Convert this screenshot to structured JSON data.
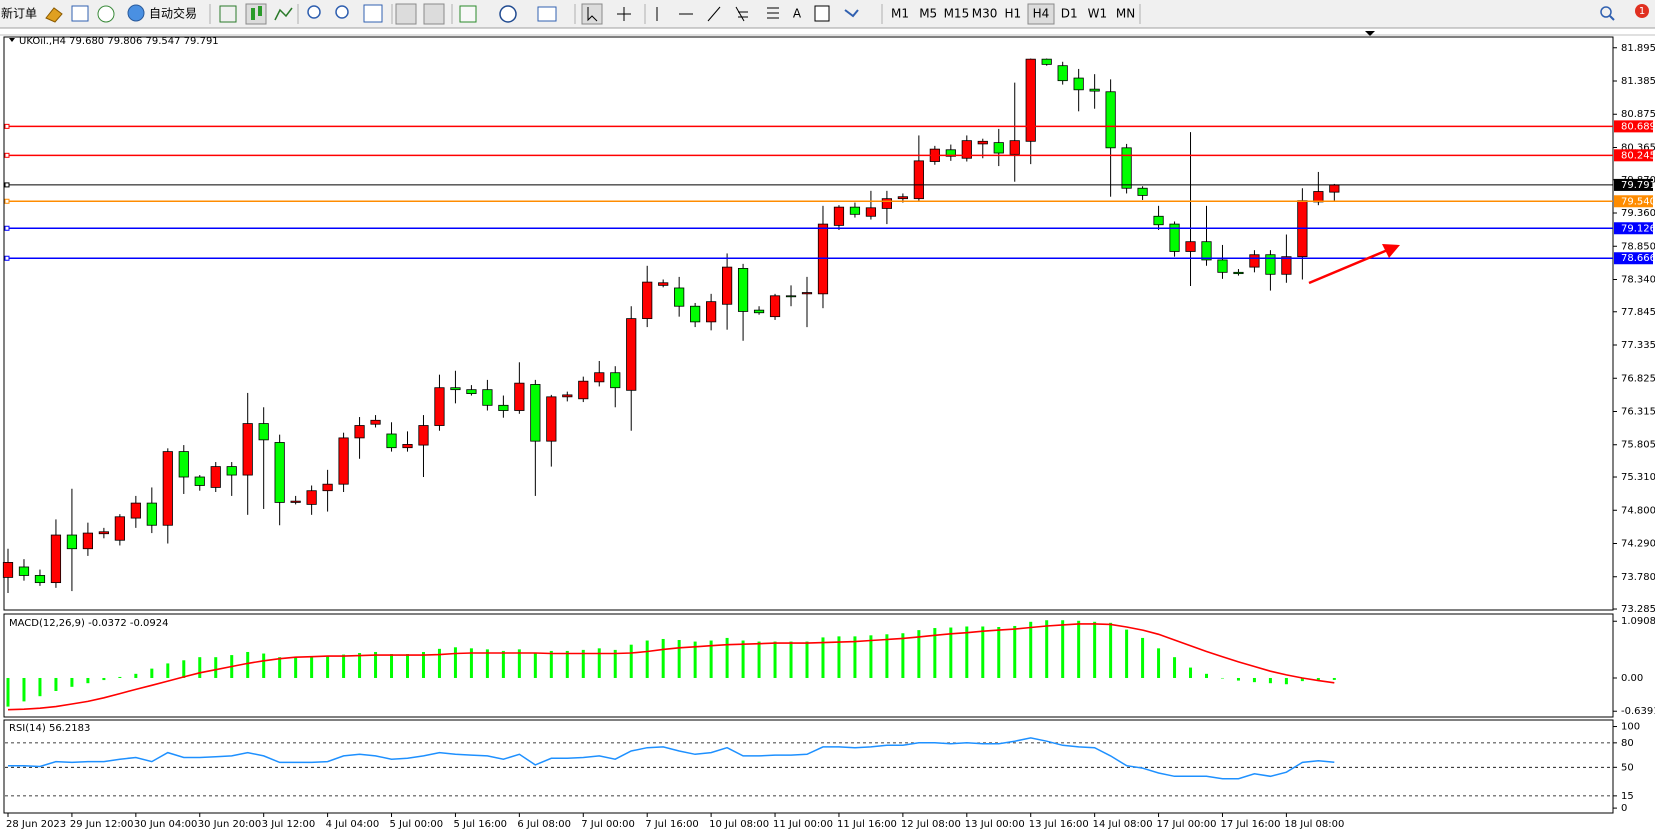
{
  "toolbar": {
    "new_order": "新订单",
    "auto_trading": "自动交易",
    "text_tool": "A",
    "timeframes": [
      "M1",
      "M5",
      "M15",
      "M30",
      "H1",
      "H4",
      "D1",
      "W1",
      "MN"
    ],
    "active_timeframe": "H4",
    "notification_count": 1
  },
  "chart_data": [
    {
      "type": "candlestick",
      "title": "UKOil.,H4 79.680 79.806 79.547 79.791",
      "up_color": "#ff0000",
      "down_color": "#00ff00",
      "categories": [
        "28 Jun 2023",
        null,
        null,
        null,
        "29 Jun 12:00",
        null,
        null,
        null,
        "30 Jun 04:00",
        null,
        null,
        null,
        "30 Jun 20:00",
        null,
        null,
        null,
        "3 Jul 12:00",
        null,
        null,
        null,
        "4 Jul 04:00",
        null,
        null,
        null,
        "5 Jul 00:00",
        null,
        null,
        null,
        "5 Jul 16:00",
        null,
        null,
        null,
        "6 Jul 08:00",
        null,
        null,
        null,
        "7 Jul 00:00",
        null,
        null,
        null,
        "7 Jul 16:00",
        null,
        null,
        null,
        "10 Jul 08:00",
        null,
        null,
        null,
        "11 Jul 00:00",
        null,
        null,
        null,
        "11 Jul 16:00",
        null,
        null,
        null,
        "12 Jul 08:00",
        null,
        null,
        null,
        "13 Jul 00:00",
        null,
        null,
        null,
        "13 Jul 16:00",
        null,
        null,
        null,
        "14 Jul 08:00",
        null,
        null,
        null,
        "17 Jul 00:00",
        null,
        null,
        null,
        "17 Jul 16:00",
        null,
        null,
        null,
        "18 Jul 08:00",
        null,
        null,
        null
      ],
      "ohlc": [
        [
          73.77,
          74.21,
          73.53,
          74.0
        ],
        [
          73.93,
          74.05,
          73.72,
          73.8
        ],
        [
          73.8,
          73.89,
          73.64,
          73.69
        ],
        [
          73.69,
          74.66,
          73.61,
          74.42
        ],
        [
          74.42,
          75.13,
          73.56,
          74.21
        ],
        [
          74.21,
          74.61,
          74.1,
          74.45
        ],
        [
          74.44,
          74.53,
          74.37,
          74.47
        ],
        [
          74.34,
          74.74,
          74.26,
          74.7
        ],
        [
          74.68,
          75.02,
          74.53,
          74.91
        ],
        [
          74.91,
          75.15,
          74.45,
          74.57
        ],
        [
          74.57,
          75.75,
          74.29,
          75.7
        ],
        [
          75.7,
          75.8,
          75.05,
          75.31
        ],
        [
          75.31,
          75.34,
          75.1,
          75.18
        ],
        [
          75.15,
          75.54,
          75.08,
          75.47
        ],
        [
          75.47,
          75.54,
          75.02,
          75.34
        ],
        [
          75.34,
          76.6,
          74.73,
          76.13
        ],
        [
          76.13,
          76.38,
          74.82,
          75.88
        ],
        [
          75.84,
          75.96,
          74.57,
          74.92
        ],
        [
          74.92,
          75.02,
          74.89,
          74.94
        ],
        [
          74.89,
          75.18,
          74.73,
          75.1
        ],
        [
          75.1,
          75.42,
          74.78,
          75.2
        ],
        [
          75.2,
          75.99,
          75.08,
          75.91
        ],
        [
          75.91,
          76.23,
          75.59,
          76.1
        ],
        [
          76.12,
          76.26,
          76.07,
          76.18
        ],
        [
          75.97,
          76.15,
          75.7,
          75.76
        ],
        [
          75.76,
          76.01,
          75.7,
          75.81
        ],
        [
          75.8,
          76.26,
          75.31,
          76.1
        ],
        [
          76.1,
          76.88,
          76.02,
          76.68
        ],
        [
          76.68,
          76.94,
          76.44,
          76.65
        ],
        [
          76.65,
          76.72,
          76.56,
          76.59
        ],
        [
          76.65,
          76.8,
          76.33,
          76.41
        ],
        [
          76.41,
          76.56,
          76.22,
          76.33
        ],
        [
          76.33,
          77.07,
          76.28,
          76.75
        ],
        [
          76.73,
          76.8,
          75.02,
          75.86
        ],
        [
          75.86,
          76.57,
          75.47,
          76.54
        ],
        [
          76.54,
          76.62,
          76.47,
          76.57
        ],
        [
          76.51,
          76.85,
          76.46,
          76.78
        ],
        [
          76.77,
          77.09,
          76.7,
          76.91
        ],
        [
          76.91,
          77.01,
          76.38,
          76.68
        ],
        [
          76.64,
          77.93,
          76.02,
          77.74
        ],
        [
          77.74,
          78.55,
          77.61,
          78.3
        ],
        [
          78.25,
          78.34,
          78.22,
          78.29
        ],
        [
          78.21,
          78.38,
          77.77,
          77.93
        ],
        [
          77.93,
          77.98,
          77.61,
          77.69
        ],
        [
          77.69,
          78.12,
          77.56,
          78.0
        ],
        [
          77.96,
          78.74,
          77.57,
          78.53
        ],
        [
          78.51,
          78.58,
          77.4,
          77.85
        ],
        [
          77.87,
          77.93,
          77.8,
          77.83
        ],
        [
          77.77,
          78.12,
          77.72,
          78.09
        ],
        [
          78.09,
          78.25,
          77.93,
          78.08
        ],
        [
          78.12,
          78.38,
          77.61,
          78.14
        ],
        [
          78.12,
          79.47,
          77.9,
          79.19
        ],
        [
          79.17,
          79.48,
          79.1,
          79.45
        ],
        [
          79.45,
          79.52,
          79.29,
          79.34
        ],
        [
          79.31,
          79.7,
          79.26,
          79.44
        ],
        [
          79.43,
          79.7,
          79.19,
          79.58
        ],
        [
          79.58,
          79.66,
          79.52,
          79.61
        ],
        [
          79.58,
          80.55,
          79.55,
          80.16
        ],
        [
          80.15,
          80.39,
          80.1,
          80.34
        ],
        [
          80.33,
          80.41,
          80.16,
          80.23
        ],
        [
          80.2,
          80.55,
          80.15,
          80.47
        ],
        [
          80.42,
          80.5,
          80.2,
          80.46
        ],
        [
          80.44,
          80.65,
          80.08,
          80.28
        ],
        [
          80.26,
          81.36,
          79.84,
          80.47
        ],
        [
          80.46,
          81.73,
          80.11,
          81.72
        ],
        [
          81.72,
          81.73,
          81.62,
          81.64
        ],
        [
          81.62,
          81.68,
          81.33,
          81.39
        ],
        [
          81.43,
          81.57,
          80.92,
          81.25
        ],
        [
          81.26,
          81.49,
          80.96,
          81.23
        ],
        [
          81.22,
          81.41,
          79.61,
          80.36
        ],
        [
          80.36,
          80.42,
          79.66,
          79.74
        ],
        [
          79.74,
          79.77,
          79.56,
          79.63
        ],
        [
          79.31,
          79.47,
          79.1,
          79.18
        ],
        [
          79.19,
          79.23,
          78.69,
          78.77
        ],
        [
          78.77,
          80.6,
          78.24,
          78.92
        ],
        [
          78.92,
          79.47,
          78.55,
          78.64
        ],
        [
          78.64,
          78.87,
          78.35,
          78.45
        ],
        [
          78.45,
          78.5,
          78.4,
          78.43
        ],
        [
          78.53,
          78.79,
          78.45,
          78.72
        ],
        [
          78.72,
          78.79,
          78.17,
          78.42
        ],
        [
          78.42,
          79.03,
          78.29,
          78.69
        ],
        [
          78.69,
          79.74,
          78.34,
          79.55
        ],
        [
          79.53,
          79.99,
          79.48,
          79.69
        ],
        [
          79.68,
          79.806,
          79.547,
          79.791
        ]
      ],
      "ylim": [
        73.27,
        82.06
      ],
      "yticks": [
        81.895,
        81.385,
        80.875,
        80.365,
        {
          "value": 79.87,
          "label": "79.870"
        },
        {
          "value": 79.36,
          "label": "79.360"
        },
        {
          "value": 78.85,
          "label": "78.850"
        },
        {
          "value": 78.34,
          "label": "78.340"
        },
        77.845,
        77.335,
        76.825,
        76.315,
        75.805,
        {
          "value": 75.31,
          "label": "75.310"
        },
        {
          "value": 74.8,
          "label": "74.800"
        },
        {
          "value": 74.29,
          "label": "74.290"
        },
        {
          "value": 73.78,
          "label": "73.780"
        },
        73.285
      ],
      "levels": [
        {
          "value": 80.689,
          "color": "#ff0000"
        },
        {
          "value": 80.245,
          "color": "#ff0000"
        },
        {
          "value": 79.791,
          "color": "#000000"
        },
        {
          "value": 79.54,
          "label": "79.540",
          "color": "#ff8c00"
        },
        {
          "value": 79.126,
          "color": "#0000ff"
        },
        {
          "value": 78.666,
          "color": "#0000ff"
        }
      ]
    },
    {
      "type": "macd",
      "title": "MACD(12,26,9) -0.0372 -0.0924",
      "series": [
        {
          "color": "#00ff00",
          "values": [
            -0.55,
            -0.45,
            -0.35,
            -0.25,
            -0.17,
            -0.1,
            -0.04,
            0.02,
            0.08,
            0.18,
            0.28,
            0.34,
            0.4,
            0.4,
            0.44,
            0.5,
            0.47,
            0.4,
            0.4,
            0.4,
            0.42,
            0.45,
            0.48,
            0.5,
            0.46,
            0.46,
            0.5,
            0.56,
            0.59,
            0.57,
            0.55,
            0.52,
            0.55,
            0.48,
            0.52,
            0.52,
            0.54,
            0.57,
            0.54,
            0.64,
            0.72,
            0.75,
            0.73,
            0.7,
            0.72,
            0.77,
            0.72,
            0.7,
            0.7,
            0.7,
            0.7,
            0.78,
            0.8,
            0.8,
            0.82,
            0.84,
            0.86,
            0.92,
            0.96,
            0.97,
            0.99,
            0.99,
            0.98,
            1.0,
            1.08,
            1.11,
            1.11,
            1.1,
            1.08,
            1.06,
            0.93,
            0.77,
            0.57,
            0.4,
            0.2,
            0.08,
            0.0,
            -0.05,
            -0.08,
            -0.1,
            -0.12,
            -0.06,
            -0.04,
            -0.0372
          ]
        },
        {
          "color": "#ff0000",
          "values": [
            -0.61,
            -0.6,
            -0.58,
            -0.55,
            -0.5,
            -0.45,
            -0.38,
            -0.3,
            -0.22,
            -0.14,
            -0.06,
            0.02,
            0.1,
            0.16,
            0.22,
            0.28,
            0.33,
            0.37,
            0.4,
            0.41,
            0.42,
            0.42,
            0.43,
            0.44,
            0.44,
            0.44,
            0.44,
            0.45,
            0.47,
            0.48,
            0.48,
            0.48,
            0.48,
            0.48,
            0.47,
            0.47,
            0.47,
            0.47,
            0.47,
            0.48,
            0.51,
            0.55,
            0.58,
            0.6,
            0.62,
            0.64,
            0.65,
            0.66,
            0.67,
            0.67,
            0.67,
            0.68,
            0.69,
            0.7,
            0.72,
            0.74,
            0.76,
            0.79,
            0.82,
            0.85,
            0.87,
            0.9,
            0.92,
            0.94,
            0.97,
            1.0,
            1.02,
            1.04,
            1.04,
            1.03,
            0.98,
            0.92,
            0.84,
            0.73,
            0.62,
            0.51,
            0.41,
            0.31,
            0.22,
            0.13,
            0.06,
            0.0,
            -0.05,
            -0.0924
          ]
        }
      ],
      "ylim": [
        -0.75,
        1.23
      ],
      "yticks": [
        1.0908,
        {
          "value": 0,
          "label": "0.00"
        },
        -0.6391
      ]
    },
    {
      "type": "line",
      "title": "RSI(14) 56.2183",
      "color": "#1e90ff",
      "values": [
        52,
        52,
        51,
        57,
        56,
        57,
        57,
        60,
        62,
        57,
        68,
        62,
        62,
        63,
        64,
        68,
        64,
        56,
        56,
        56,
        57,
        64,
        66,
        64,
        60,
        61,
        64,
        68,
        66,
        65,
        64,
        60,
        66,
        53,
        61,
        61,
        62,
        64,
        60,
        70,
        74,
        75,
        70,
        66,
        68,
        74,
        64,
        64,
        65,
        65,
        66,
        75,
        75,
        74,
        75,
        77,
        77,
        80,
        80,
        79,
        80,
        79,
        79,
        82,
        86,
        82,
        77,
        75,
        74,
        64,
        52,
        49,
        43,
        39,
        39,
        39,
        36,
        36,
        42,
        39,
        44,
        56,
        58,
        56.2183
      ],
      "ylim": [
        -6,
        108
      ],
      "yticks": [
        100,
        80,
        50,
        15,
        0
      ],
      "levels": [
        80,
        50,
        15
      ]
    }
  ]
}
